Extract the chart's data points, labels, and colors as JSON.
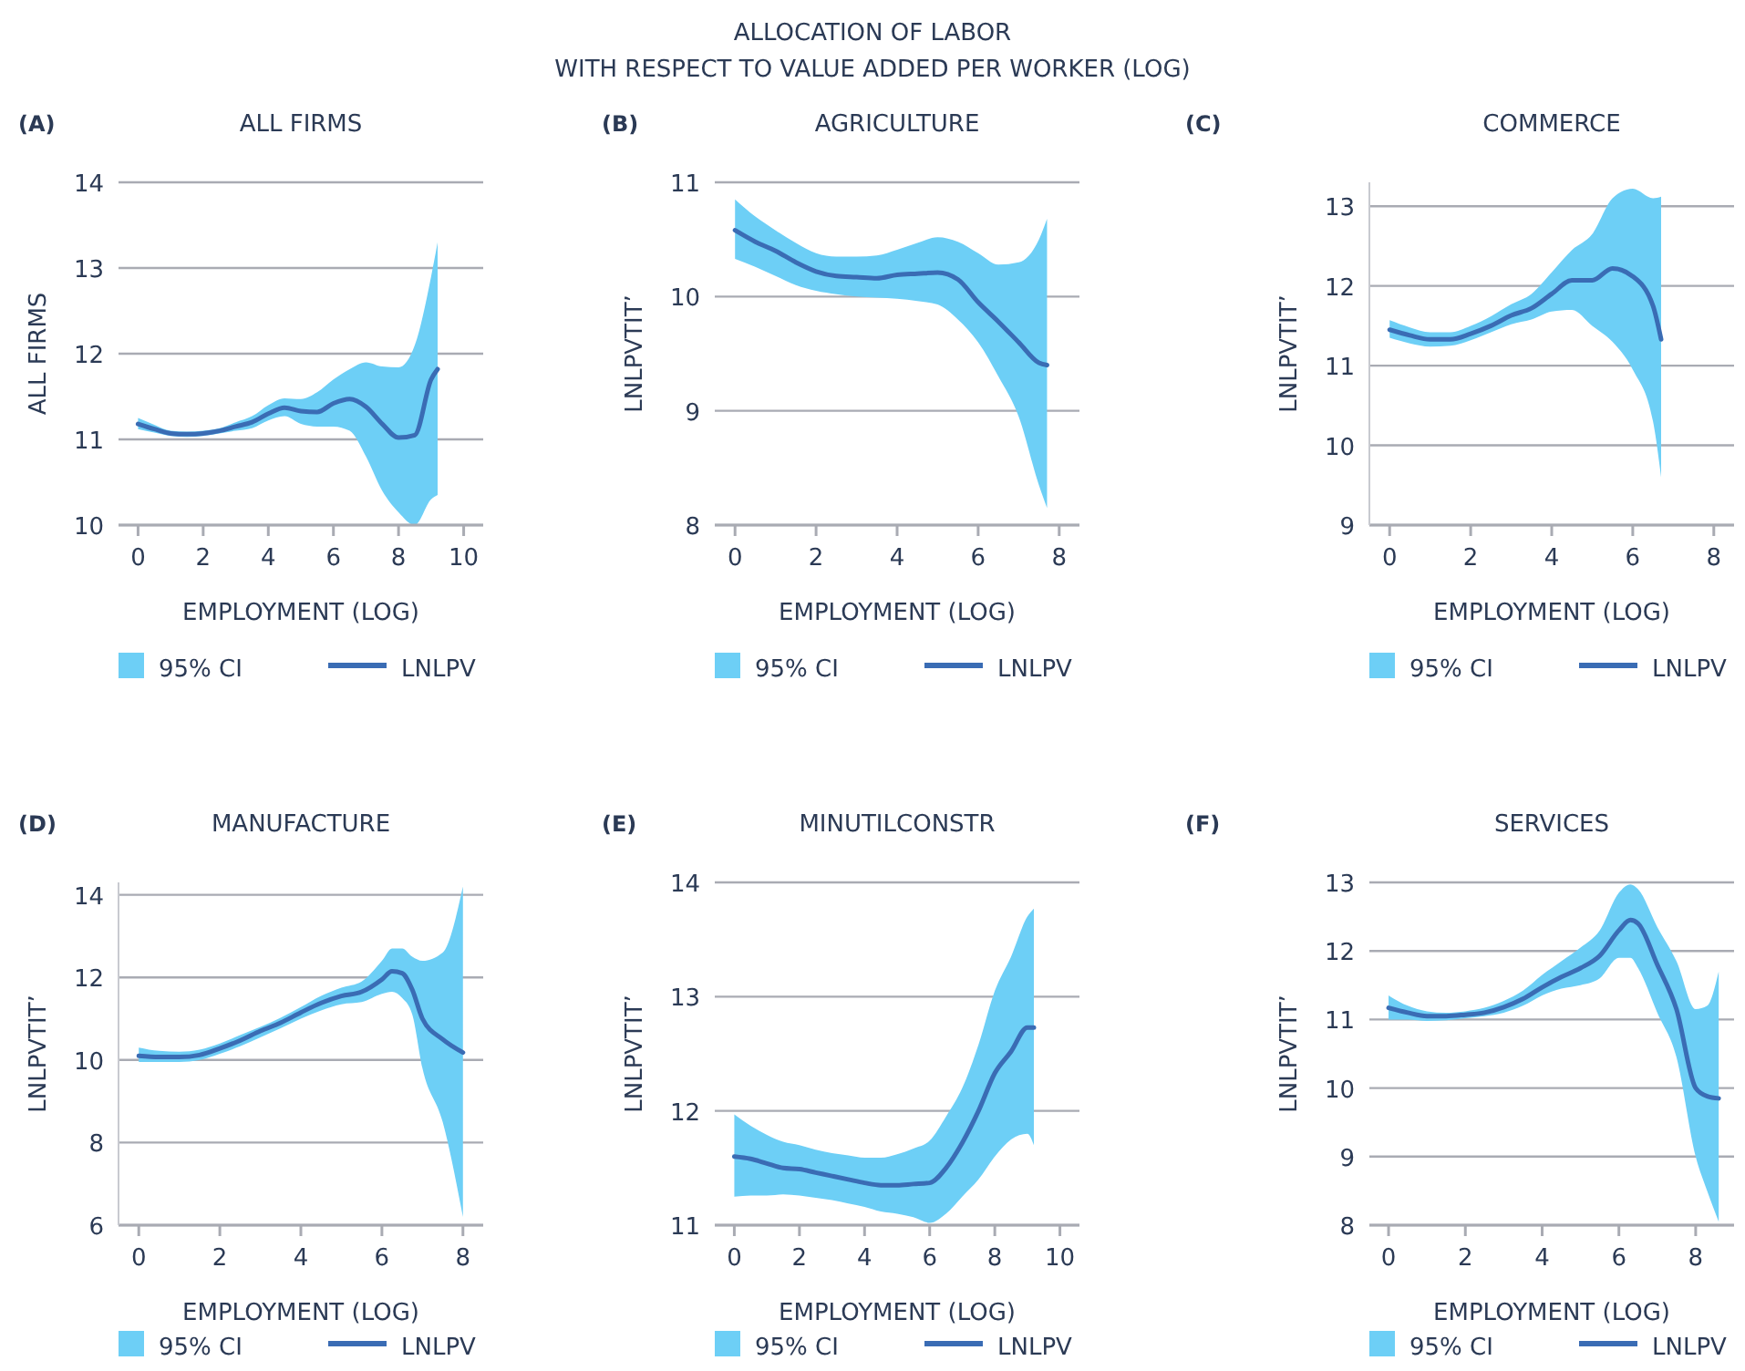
{
  "chart_data": [
    {
      "type": "other",
      "title": "ALLOCATION OF LABOR",
      "subtitle": "WITH RESPECT TO VALUE ADDED PER WORKER (LOG)"
    },
    {
      "type": "line",
      "title": "ALL FIRMS",
      "annotations": [
        "(A)",
        "95% CI"
      ],
      "xlabel": "EMPLOYMENT (LOG)",
      "ylabel": "ALL FIRMS",
      "xlim": [
        -0.6,
        10.6
      ],
      "xticks": [
        0,
        2,
        4,
        6,
        8,
        10
      ],
      "ylim": [
        10,
        14
      ],
      "yticks": [
        10,
        11,
        12,
        13,
        14
      ],
      "grid": "y",
      "legend": "bottom",
      "x": [
        0,
        0.5,
        1,
        1.5,
        2,
        2.5,
        3,
        3.5,
        4,
        4.5,
        5,
        5.5,
        6,
        6.5,
        7,
        7.5,
        8,
        8.5,
        9,
        9.2
      ],
      "series": [
        {
          "name": "LNLPV",
          "color": "#3a6cb4",
          "values": [
            11.18,
            11.12,
            11.07,
            11.06,
            11.07,
            11.1,
            11.15,
            11.2,
            11.3,
            11.37,
            11.33,
            11.32,
            11.42,
            11.47,
            11.38,
            11.18,
            11.02,
            11.05,
            11.7,
            11.82
          ],
          "lower": [
            11.12,
            11.08,
            11.04,
            11.03,
            11.04,
            11.07,
            11.1,
            11.13,
            11.22,
            11.27,
            11.18,
            11.15,
            11.15,
            11.1,
            10.8,
            10.4,
            10.15,
            10.0,
            10.3,
            10.35
          ],
          "upper": [
            11.25,
            11.17,
            11.1,
            11.09,
            11.1,
            11.13,
            11.2,
            11.27,
            11.4,
            11.48,
            11.47,
            11.55,
            11.7,
            11.82,
            11.9,
            11.85,
            11.84,
            12.1,
            12.9,
            13.3
          ]
        }
      ]
    },
    {
      "type": "line",
      "title": "AGRICULTURE",
      "annotations": [
        "(B)",
        "95% CI"
      ],
      "xlabel": "EMPLOYMENT (LOG)",
      "ylabel": "LNLPVTIT’",
      "xlim": [
        -0.5,
        8.5
      ],
      "xticks": [
        0,
        2,
        4,
        6,
        8
      ],
      "ylim": [
        8,
        11
      ],
      "yticks": [
        8,
        9,
        10,
        11
      ],
      "grid": "y",
      "legend": "bottom",
      "x": [
        0,
        0.5,
        1,
        1.5,
        2,
        2.5,
        3,
        3.5,
        4,
        4.5,
        5,
        5.5,
        6,
        6.5,
        7,
        7.5,
        7.7
      ],
      "series": [
        {
          "name": "LNLPV",
          "color": "#3a6cb4",
          "values": [
            10.58,
            10.48,
            10.4,
            10.3,
            10.22,
            10.18,
            10.17,
            10.16,
            10.19,
            10.2,
            10.21,
            10.15,
            9.95,
            9.78,
            9.6,
            9.42,
            9.4
          ],
          "lower": [
            10.33,
            10.26,
            10.18,
            10.1,
            10.05,
            10.02,
            10.0,
            9.99,
            9.98,
            9.96,
            9.93,
            9.8,
            9.6,
            9.3,
            8.95,
            8.35,
            8.15
          ],
          "upper": [
            10.85,
            10.7,
            10.58,
            10.47,
            10.38,
            10.35,
            10.35,
            10.36,
            10.41,
            10.47,
            10.52,
            10.48,
            10.38,
            10.28,
            10.3,
            10.5,
            10.68
          ]
        }
      ]
    },
    {
      "type": "line",
      "title": "COMMERCE",
      "annotations": [
        "(C)",
        "95% CI"
      ],
      "xlabel": "EMPLOYMENT (LOG)",
      "ylabel": "LNLPVTIT’",
      "xlim": [
        -0.5,
        8.5
      ],
      "xticks": [
        0,
        2,
        4,
        6,
        8
      ],
      "ylim": [
        9,
        13.3
      ],
      "yticks": [
        9,
        10,
        11,
        12,
        13
      ],
      "grid": "y",
      "legend": "bottom",
      "x": [
        0,
        0.5,
        1,
        1.5,
        2,
        2.5,
        3,
        3.5,
        4,
        4.5,
        5,
        5.5,
        6,
        6.5,
        6.7
      ],
      "series": [
        {
          "name": "LNLPV",
          "color": "#3a6cb4",
          "values": [
            11.45,
            11.38,
            11.33,
            11.33,
            11.4,
            11.5,
            11.63,
            11.72,
            11.9,
            12.07,
            12.07,
            12.22,
            12.12,
            11.75,
            11.33
          ],
          "lower": [
            11.35,
            11.28,
            11.24,
            11.25,
            11.32,
            11.42,
            11.52,
            11.58,
            11.68,
            11.7,
            11.5,
            11.3,
            10.95,
            10.3,
            9.6
          ],
          "upper": [
            11.57,
            11.48,
            11.42,
            11.42,
            11.5,
            11.62,
            11.77,
            11.9,
            12.17,
            12.45,
            12.65,
            13.1,
            13.22,
            13.1,
            13.12
          ]
        }
      ]
    },
    {
      "type": "line",
      "title": "MANUFACTURE",
      "annotations": [
        "(D)",
        "95% CI"
      ],
      "xlabel": "EMPLOYMENT (LOG)",
      "ylabel": "LNLPVTIT’",
      "xlim": [
        -0.5,
        8.5
      ],
      "xticks": [
        0,
        2,
        4,
        6,
        8
      ],
      "ylim": [
        6,
        14.3
      ],
      "yticks": [
        6,
        8,
        10,
        12,
        14
      ],
      "grid": "y",
      "legend": "bottom",
      "x": [
        0,
        0.5,
        1,
        1.5,
        2,
        2.5,
        3,
        3.5,
        4,
        4.5,
        5,
        5.5,
        6,
        6.25,
        6.5,
        6.75,
        7,
        7.5,
        8
      ],
      "series": [
        {
          "name": "LNLPV",
          "color": "#3a6cb4",
          "values": [
            10.1,
            10.07,
            10.07,
            10.12,
            10.28,
            10.47,
            10.7,
            10.9,
            11.15,
            11.38,
            11.55,
            11.65,
            11.95,
            12.15,
            12.1,
            11.7,
            11.0,
            10.5,
            10.18
          ],
          "lower": [
            9.95,
            9.95,
            9.95,
            10.0,
            10.15,
            10.33,
            10.55,
            10.77,
            11.0,
            11.2,
            11.35,
            11.4,
            11.6,
            11.65,
            11.5,
            11.1,
            9.8,
            8.5,
            6.2
          ],
          "upper": [
            10.3,
            10.22,
            10.2,
            10.25,
            10.4,
            10.6,
            10.8,
            11.02,
            11.28,
            11.55,
            11.75,
            11.9,
            12.4,
            12.7,
            12.7,
            12.5,
            12.4,
            12.6,
            14.2
          ]
        }
      ]
    },
    {
      "type": "line",
      "title": "MINUTILCONSTR",
      "annotations": [
        "(E)",
        "95% CI"
      ],
      "xlabel": "EMPLOYMENT (LOG)",
      "ylabel": "LNLPVTIT’",
      "xlim": [
        -0.6,
        10.6
      ],
      "xticks": [
        0,
        2,
        4,
        6,
        8,
        10
      ],
      "ylim": [
        11,
        14
      ],
      "yticks": [
        11,
        12,
        13,
        14
      ],
      "grid": "y",
      "legend": "bottom",
      "x": [
        0,
        0.5,
        1,
        1.5,
        2,
        2.5,
        3,
        3.5,
        4,
        4.5,
        5,
        5.5,
        6,
        6.5,
        7,
        7.5,
        8,
        8.5,
        9,
        9.2
      ],
      "series": [
        {
          "name": "LNLPV",
          "color": "#3a6cb4",
          "values": [
            11.6,
            11.58,
            11.54,
            11.5,
            11.49,
            11.46,
            11.43,
            11.4,
            11.37,
            11.35,
            11.35,
            11.36,
            11.37,
            11.5,
            11.72,
            12.0,
            12.33,
            12.52,
            12.73,
            12.73
          ],
          "lower": [
            11.25,
            11.26,
            11.26,
            11.27,
            11.26,
            11.24,
            11.22,
            11.19,
            11.16,
            11.12,
            11.1,
            11.07,
            11.02,
            11.1,
            11.25,
            11.4,
            11.6,
            11.75,
            11.8,
            11.7
          ],
          "upper": [
            11.97,
            11.87,
            11.79,
            11.73,
            11.7,
            11.66,
            11.63,
            11.61,
            11.59,
            11.59,
            11.62,
            11.67,
            11.74,
            11.95,
            12.2,
            12.58,
            13.05,
            13.35,
            13.7,
            13.77
          ]
        }
      ]
    },
    {
      "type": "line",
      "title": "SERVICES",
      "annotations": [
        "(F)",
        "95% CI"
      ],
      "xlabel": "EMPLOYMENT (LOG)",
      "ylabel": "LNLPVTIT’",
      "xlim": [
        -0.5,
        9
      ],
      "xticks": [
        0,
        2,
        4,
        6,
        8
      ],
      "ylim": [
        8,
        13
      ],
      "yticks": [
        8,
        9,
        10,
        11,
        12,
        13
      ],
      "grid": "y",
      "legend": "bottom",
      "x": [
        0,
        0.5,
        1,
        1.5,
        2,
        2.5,
        3,
        3.5,
        4,
        4.5,
        5,
        5.5,
        6,
        6.3,
        6.5,
        7,
        7.5,
        8,
        8.3,
        8.6
      ],
      "series": [
        {
          "name": "LNLPV",
          "color": "#3a6cb4",
          "values": [
            11.17,
            11.1,
            11.05,
            11.05,
            11.07,
            11.1,
            11.18,
            11.3,
            11.47,
            11.62,
            11.75,
            11.93,
            12.3,
            12.45,
            12.4,
            11.8,
            11.15,
            10.0,
            9.88,
            9.85
          ],
          "lower": [
            11.0,
            11.0,
            10.98,
            10.99,
            11.02,
            11.05,
            11.1,
            11.2,
            11.35,
            11.45,
            11.5,
            11.6,
            11.9,
            11.9,
            11.75,
            11.1,
            10.45,
            9.0,
            8.5,
            8.05
          ],
          "upper": [
            11.35,
            11.2,
            11.12,
            11.1,
            11.12,
            11.17,
            11.27,
            11.42,
            11.65,
            11.85,
            12.05,
            12.3,
            12.85,
            12.97,
            12.9,
            12.35,
            11.85,
            11.15,
            11.2,
            11.7
          ]
        }
      ]
    }
  ]
}
